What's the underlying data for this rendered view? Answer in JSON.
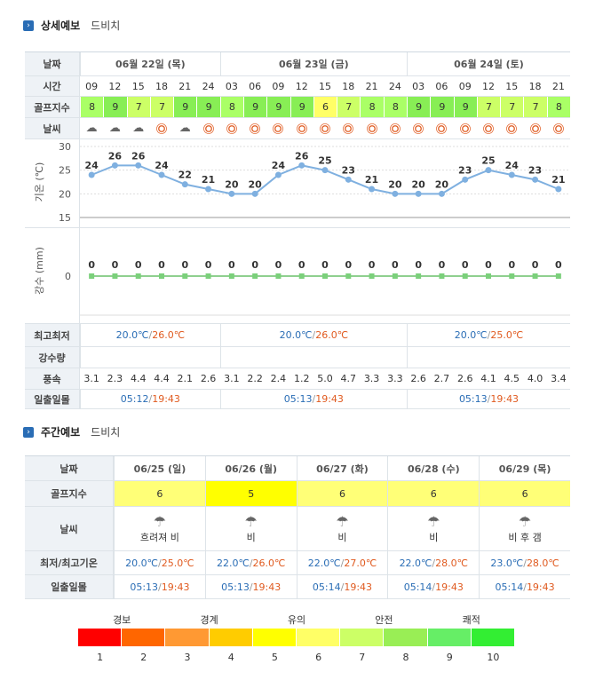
{
  "detail": {
    "title": "상세예보",
    "sub": "드비치",
    "labels": {
      "date": "날짜",
      "time": "시간",
      "golf": "골프지수",
      "weather": "날씨",
      "temp_axis": "기온 (℃)",
      "rain_axis": "강수 (mm)",
      "minmax": "최고최저",
      "rainfall": "강수량",
      "wind": "풍속",
      "sun": "일출일몰"
    },
    "days": [
      {
        "label": "06월 22일 (목)",
        "minmax_min": "20.0℃",
        "minmax_max": "26.0℃",
        "sunrise": "05:12",
        "sunset": "19:43"
      },
      {
        "label": "06월 23일 (금)",
        "minmax_min": "20.0℃",
        "minmax_max": "26.0℃",
        "sunrise": "05:13",
        "sunset": "19:43"
      },
      {
        "label": "06월 24일 (토)",
        "minmax_min": "20.0℃",
        "minmax_max": "25.0℃",
        "sunrise": "05:13",
        "sunset": "19:43"
      }
    ],
    "times": [
      "09",
      "12",
      "15",
      "18",
      "21",
      "24",
      "03",
      "06",
      "09",
      "12",
      "15",
      "18",
      "21",
      "24",
      "03",
      "06",
      "09",
      "12",
      "15",
      "18",
      "21"
    ],
    "golf": [
      "8",
      "9",
      "7",
      "7",
      "9",
      "9",
      "8",
      "9",
      "9",
      "9",
      "6",
      "7",
      "8",
      "8",
      "9",
      "9",
      "9",
      "7",
      "7",
      "7",
      "8"
    ],
    "golf_colors": [
      "#aaff66",
      "#88ee55",
      "#ccff66",
      "#ccff66",
      "#88ee55",
      "#88ee55",
      "#aaff66",
      "#88ee55",
      "#88ee55",
      "#88ee55",
      "#ffff66",
      "#ccff66",
      "#aaff66",
      "#aaff66",
      "#88ee55",
      "#88ee55",
      "#88ee55",
      "#ccff66",
      "#ccff66",
      "#ccff66",
      "#aaff66"
    ],
    "weather_icons": [
      "partly-cloudy",
      "partly-cloudy",
      "partly-cloudy",
      "sun",
      "partly-cloudy",
      "sun",
      "sun",
      "sun",
      "sun",
      "sun",
      "sun",
      "sun",
      "sun",
      "sun",
      "sun",
      "sun",
      "sun",
      "sun",
      "sun",
      "sun",
      "sun"
    ],
    "wind": [
      "3.1",
      "2.3",
      "4.4",
      "4.4",
      "2.1",
      "2.6",
      "3.1",
      "2.2",
      "2.4",
      "1.2",
      "5.0",
      "4.7",
      "3.3",
      "3.3",
      "2.6",
      "2.7",
      "2.6",
      "4.1",
      "4.5",
      "4.0",
      "3.4"
    ]
  },
  "chart_data": [
    {
      "type": "line",
      "ylabel": "기온 (℃)",
      "x": [
        "09",
        "12",
        "15",
        "18",
        "21",
        "24",
        "03",
        "06",
        "09",
        "12",
        "15",
        "18",
        "21",
        "24",
        "03",
        "06",
        "09",
        "12",
        "15",
        "18",
        "21"
      ],
      "values": [
        24,
        26,
        26,
        24,
        22,
        21,
        20,
        20,
        24,
        26,
        25,
        23,
        21,
        20,
        20,
        20,
        23,
        25,
        24,
        23,
        21
      ],
      "yticks": [
        "15",
        "20",
        "25",
        "30"
      ],
      "ylim": [
        15,
        30
      ]
    },
    {
      "type": "line",
      "ylabel": "강수 (mm)",
      "x": [
        "09",
        "12",
        "15",
        "18",
        "21",
        "24",
        "03",
        "06",
        "09",
        "12",
        "15",
        "18",
        "21",
        "24",
        "03",
        "06",
        "09",
        "12",
        "15",
        "18",
        "21"
      ],
      "values": [
        0,
        0,
        0,
        0,
        0,
        0,
        0,
        0,
        0,
        0,
        0,
        0,
        0,
        0,
        0,
        0,
        0,
        0,
        0,
        0,
        0
      ],
      "yticks": [
        "0"
      ]
    }
  ],
  "weekly": {
    "title": "주간예보",
    "sub": "드비치",
    "labels": {
      "date": "날짜",
      "golf": "골프지수",
      "weather": "날씨",
      "minmax": "최저/최고기온",
      "sun": "일출일몰"
    },
    "days": [
      {
        "date": "06/25 (일)",
        "golf": "6",
        "golf_color": "#ffff77",
        "icon": "rain-cloud",
        "desc": "흐려져 비",
        "min": "20.0℃",
        "max": "25.0℃",
        "sunrise": "05:13",
        "sunset": "19:43"
      },
      {
        "date": "06/26 (월)",
        "golf": "5",
        "golf_color": "#ffff00",
        "icon": "rain-cloud",
        "desc": "비",
        "min": "22.0℃",
        "max": "26.0℃",
        "sunrise": "05:13",
        "sunset": "19:43"
      },
      {
        "date": "06/27 (화)",
        "golf": "6",
        "golf_color": "#ffff77",
        "icon": "rain-cloud",
        "desc": "비",
        "min": "22.0℃",
        "max": "27.0℃",
        "sunrise": "05:14",
        "sunset": "19:43"
      },
      {
        "date": "06/28 (수)",
        "golf": "6",
        "golf_color": "#ffff77",
        "icon": "rain-cloud",
        "desc": "비",
        "min": "22.0℃",
        "max": "28.0℃",
        "sunrise": "05:14",
        "sunset": "19:43"
      },
      {
        "date": "06/29 (목)",
        "golf": "6",
        "golf_color": "#ffff77",
        "icon": "rain-cloud",
        "desc": "비 후 갬",
        "min": "23.0℃",
        "max": "28.0℃",
        "sunrise": "05:14",
        "sunset": "19:43"
      }
    ]
  },
  "legend": {
    "labels": [
      "경보",
      "경계",
      "유의",
      "안전",
      "쾌적"
    ],
    "numbers": [
      "1",
      "2",
      "3",
      "4",
      "5",
      "6",
      "7",
      "8",
      "9",
      "10"
    ],
    "colors": [
      "#ff0000",
      "#ff6600",
      "#ff9933",
      "#ffcc00",
      "#ffff00",
      "#ffff66",
      "#ccff66",
      "#99ee55",
      "#66ee66",
      "#33ee33"
    ]
  }
}
